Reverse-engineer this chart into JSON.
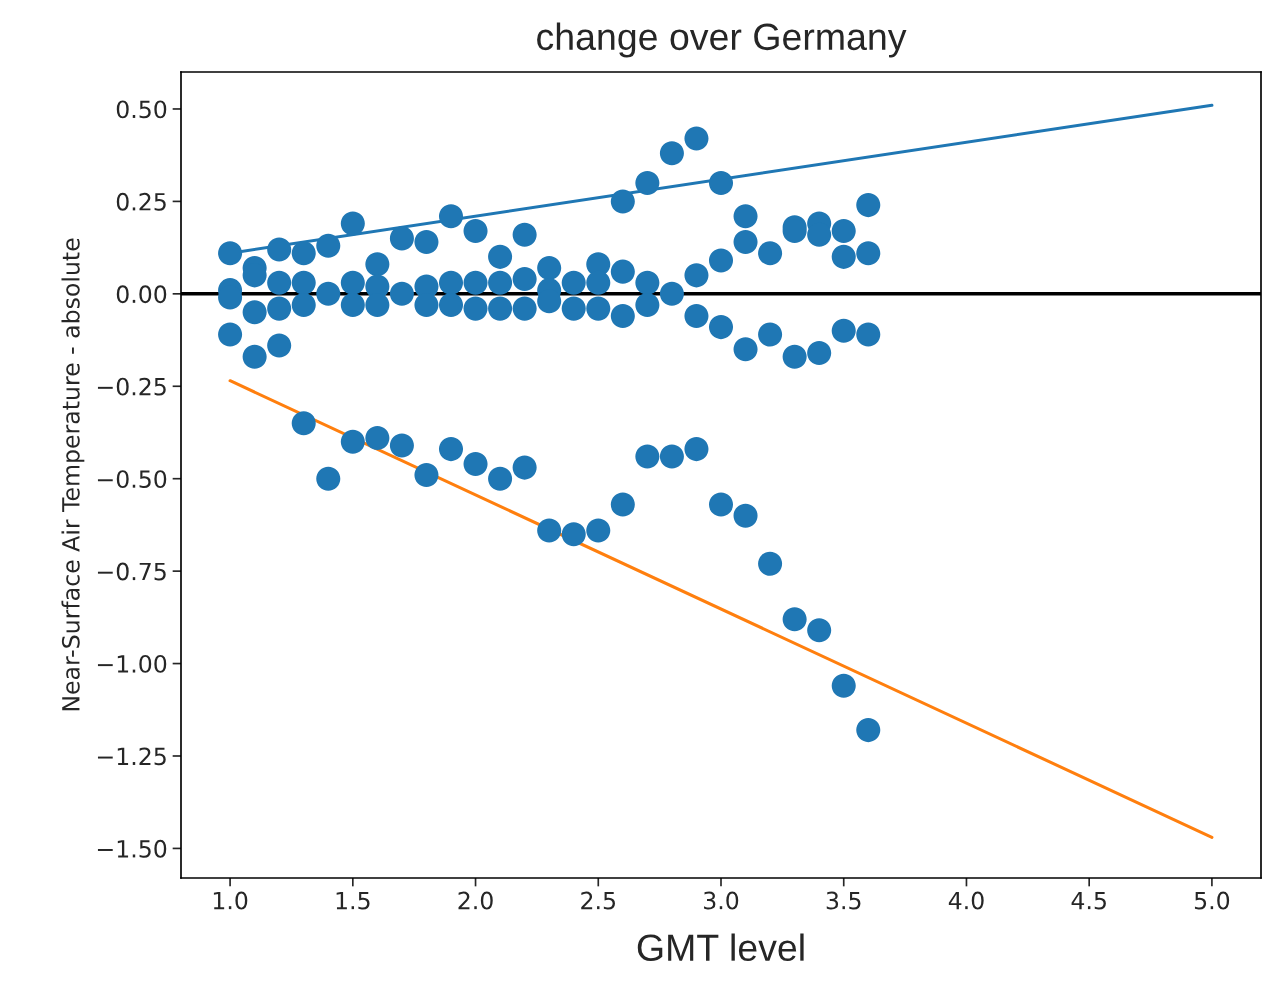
{
  "chart_data": {
    "type": "scatter",
    "title": "change over Germany",
    "xlabel": "GMT level",
    "ylabel": "Near-Surface Air Temperature - absolute",
    "xlim": [
      0.8,
      5.2
    ],
    "ylim": [
      -1.58,
      0.6
    ],
    "xticks": [
      {
        "value": 1.0,
        "label": "1.0"
      },
      {
        "value": 1.5,
        "label": "1.5"
      },
      {
        "value": 2.0,
        "label": "2.0"
      },
      {
        "value": 2.5,
        "label": "2.5"
      },
      {
        "value": 3.0,
        "label": "3.0"
      },
      {
        "value": 3.5,
        "label": "3.5"
      },
      {
        "value": 4.0,
        "label": "4.0"
      },
      {
        "value": 4.5,
        "label": "4.5"
      },
      {
        "value": 5.0,
        "label": "5.0"
      }
    ],
    "yticks": [
      {
        "value": -1.5,
        "label": "−1.50"
      },
      {
        "value": -1.25,
        "label": "−1.25"
      },
      {
        "value": -1.0,
        "label": "−1.00"
      },
      {
        "value": -0.75,
        "label": "−0.75"
      },
      {
        "value": -0.5,
        "label": "−0.50"
      },
      {
        "value": -0.25,
        "label": "−0.25"
      },
      {
        "value": 0,
        "label": "0.00"
      },
      {
        "value": 0.25,
        "label": "0.25"
      },
      {
        "value": 0.5,
        "label": "0.50"
      }
    ],
    "grid": false,
    "legend": false,
    "ref_lines": [
      {
        "axis": "y",
        "value": 0,
        "color": "#000000"
      }
    ],
    "series": [
      {
        "marker": "circle",
        "color": "#1f77b4",
        "x": [
          1.0,
          1.0,
          1.0,
          1.0,
          1.1,
          1.1,
          1.1,
          1.1,
          1.2,
          1.2,
          1.2,
          1.2,
          1.3,
          1.3,
          1.3,
          1.3,
          1.4,
          1.4,
          1.4,
          1.5,
          1.5,
          1.5,
          1.5,
          1.6,
          1.6,
          1.6,
          1.6,
          1.7,
          1.7,
          1.7,
          1.8,
          1.8,
          1.8,
          1.8,
          1.9,
          1.9,
          1.9,
          1.9,
          2.0,
          2.0,
          2.0,
          2.0,
          2.1,
          2.1,
          2.1,
          2.1,
          2.2,
          2.2,
          2.2,
          2.2,
          2.3,
          2.3,
          2.3,
          2.3,
          2.4,
          2.4,
          2.4,
          2.5,
          2.5,
          2.5,
          2.5,
          2.6,
          2.6,
          2.6,
          2.6,
          2.7,
          2.7,
          2.7,
          2.7,
          2.8,
          2.8,
          2.8,
          2.9,
          2.9,
          2.9,
          2.9,
          3.0,
          3.0,
          3.0,
          3.0,
          3.1,
          3.1,
          3.1,
          3.1,
          3.2,
          3.2,
          3.2,
          3.3,
          3.3,
          3.3,
          3.3,
          3.4,
          3.4,
          3.4,
          3.4,
          3.5,
          3.5,
          3.5,
          3.5,
          3.6,
          3.6,
          3.6,
          3.6
        ],
        "values": [
          0.11,
          0.01,
          -0.01,
          -0.11,
          0.07,
          0.05,
          -0.05,
          -0.17,
          0.12,
          0.03,
          -0.04,
          -0.14,
          0.11,
          0.03,
          -0.03,
          -0.35,
          0.13,
          0.0,
          -0.5,
          0.19,
          0.03,
          -0.03,
          -0.4,
          0.08,
          0.02,
          -0.03,
          -0.39,
          0.15,
          0.0,
          -0.41,
          0.14,
          0.02,
          -0.03,
          -0.49,
          0.21,
          0.03,
          -0.03,
          -0.42,
          0.17,
          0.03,
          -0.04,
          -0.46,
          0.1,
          0.03,
          -0.04,
          -0.5,
          0.16,
          0.04,
          -0.04,
          -0.47,
          0.07,
          0.01,
          -0.02,
          -0.64,
          0.03,
          -0.04,
          -0.65,
          0.08,
          0.03,
          -0.04,
          -0.64,
          0.25,
          0.06,
          -0.06,
          -0.57,
          0.3,
          0.03,
          -0.03,
          -0.44,
          0.38,
          0.0,
          -0.44,
          0.42,
          0.05,
          -0.06,
          -0.42,
          0.3,
          0.09,
          -0.09,
          -0.57,
          0.21,
          0.14,
          -0.15,
          -0.6,
          0.11,
          -0.11,
          -0.73,
          0.18,
          0.17,
          -0.17,
          -0.88,
          0.19,
          0.16,
          -0.16,
          -0.91,
          0.17,
          0.1,
          -0.1,
          -1.06,
          0.24,
          0.11,
          -0.11,
          -1.18
        ]
      },
      {
        "type": "line",
        "color": "#1f77b4",
        "x": [
          1.0,
          5.0
        ],
        "values": [
          0.11,
          0.51
        ]
      },
      {
        "type": "line",
        "color": "#ff7f0e",
        "x": [
          1.0,
          5.0
        ],
        "values": [
          -0.235,
          -1.47
        ]
      }
    ]
  }
}
